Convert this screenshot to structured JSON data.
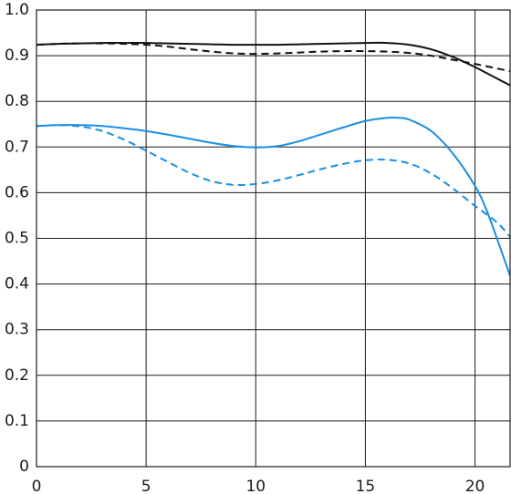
{
  "chart_data": {
    "type": "line",
    "xlim": [
      0,
      21.6
    ],
    "ylim": [
      0,
      1.0
    ],
    "x_ticks": [
      "0",
      "5",
      "10",
      "15",
      "20"
    ],
    "y_ticks": [
      "0",
      "0.1",
      "0.2",
      "0.3",
      "0.4",
      "0.5",
      "0.6",
      "0.7",
      "0.8",
      "0.9",
      "1.0"
    ],
    "grid": true,
    "series": [
      {
        "color": "#111111",
        "dash": "solid",
        "x": [
          0,
          1,
          2,
          3,
          4,
          5,
          6,
          7,
          8,
          9,
          10,
          11,
          12,
          13,
          14,
          15,
          16,
          17,
          18,
          19,
          20,
          21,
          21.6
        ],
        "y": [
          0.924,
          0.926,
          0.927,
          0.928,
          0.928,
          0.928,
          0.927,
          0.926,
          0.925,
          0.924,
          0.924,
          0.924,
          0.925,
          0.926,
          0.927,
          0.928,
          0.928,
          0.924,
          0.914,
          0.897,
          0.875,
          0.85,
          0.835
        ]
      },
      {
        "color": "#111111",
        "dash": "dashed",
        "x": [
          0,
          1,
          2,
          3,
          4,
          5,
          6,
          7,
          8,
          9,
          10,
          11,
          12,
          13,
          14,
          15,
          16,
          17,
          18,
          19,
          20,
          21,
          21.6
        ],
        "y": [
          0.924,
          0.926,
          0.927,
          0.927,
          0.926,
          0.924,
          0.92,
          0.914,
          0.909,
          0.905,
          0.904,
          0.905,
          0.907,
          0.909,
          0.91,
          0.91,
          0.909,
          0.906,
          0.9,
          0.891,
          0.882,
          0.872,
          0.866
        ]
      },
      {
        "color": "#1a8fe0",
        "dash": "solid",
        "x": [
          0,
          1,
          2,
          3,
          4,
          5,
          6,
          7,
          8,
          9,
          10,
          11,
          12,
          13,
          14,
          15,
          16,
          16.5,
          17,
          18,
          19,
          20,
          20.5,
          21,
          21.6
        ],
        "y": [
          0.746,
          0.748,
          0.748,
          0.746,
          0.741,
          0.735,
          0.727,
          0.718,
          0.709,
          0.702,
          0.699,
          0.702,
          0.713,
          0.728,
          0.743,
          0.757,
          0.764,
          0.764,
          0.76,
          0.735,
          0.685,
          0.615,
          0.565,
          0.5,
          0.418
        ]
      },
      {
        "color": "#1a8fe0",
        "dash": "dashed",
        "x": [
          0,
          1,
          2,
          3,
          4,
          5,
          6,
          7,
          8,
          9,
          10,
          11,
          12,
          13,
          14,
          15,
          16,
          17,
          18,
          19,
          20,
          21,
          21.6
        ],
        "y": [
          0.746,
          0.748,
          0.745,
          0.735,
          0.716,
          0.692,
          0.667,
          0.643,
          0.625,
          0.617,
          0.619,
          0.627,
          0.639,
          0.652,
          0.663,
          0.671,
          0.672,
          0.664,
          0.642,
          0.609,
          0.571,
          0.535,
          0.503
        ]
      }
    ]
  }
}
